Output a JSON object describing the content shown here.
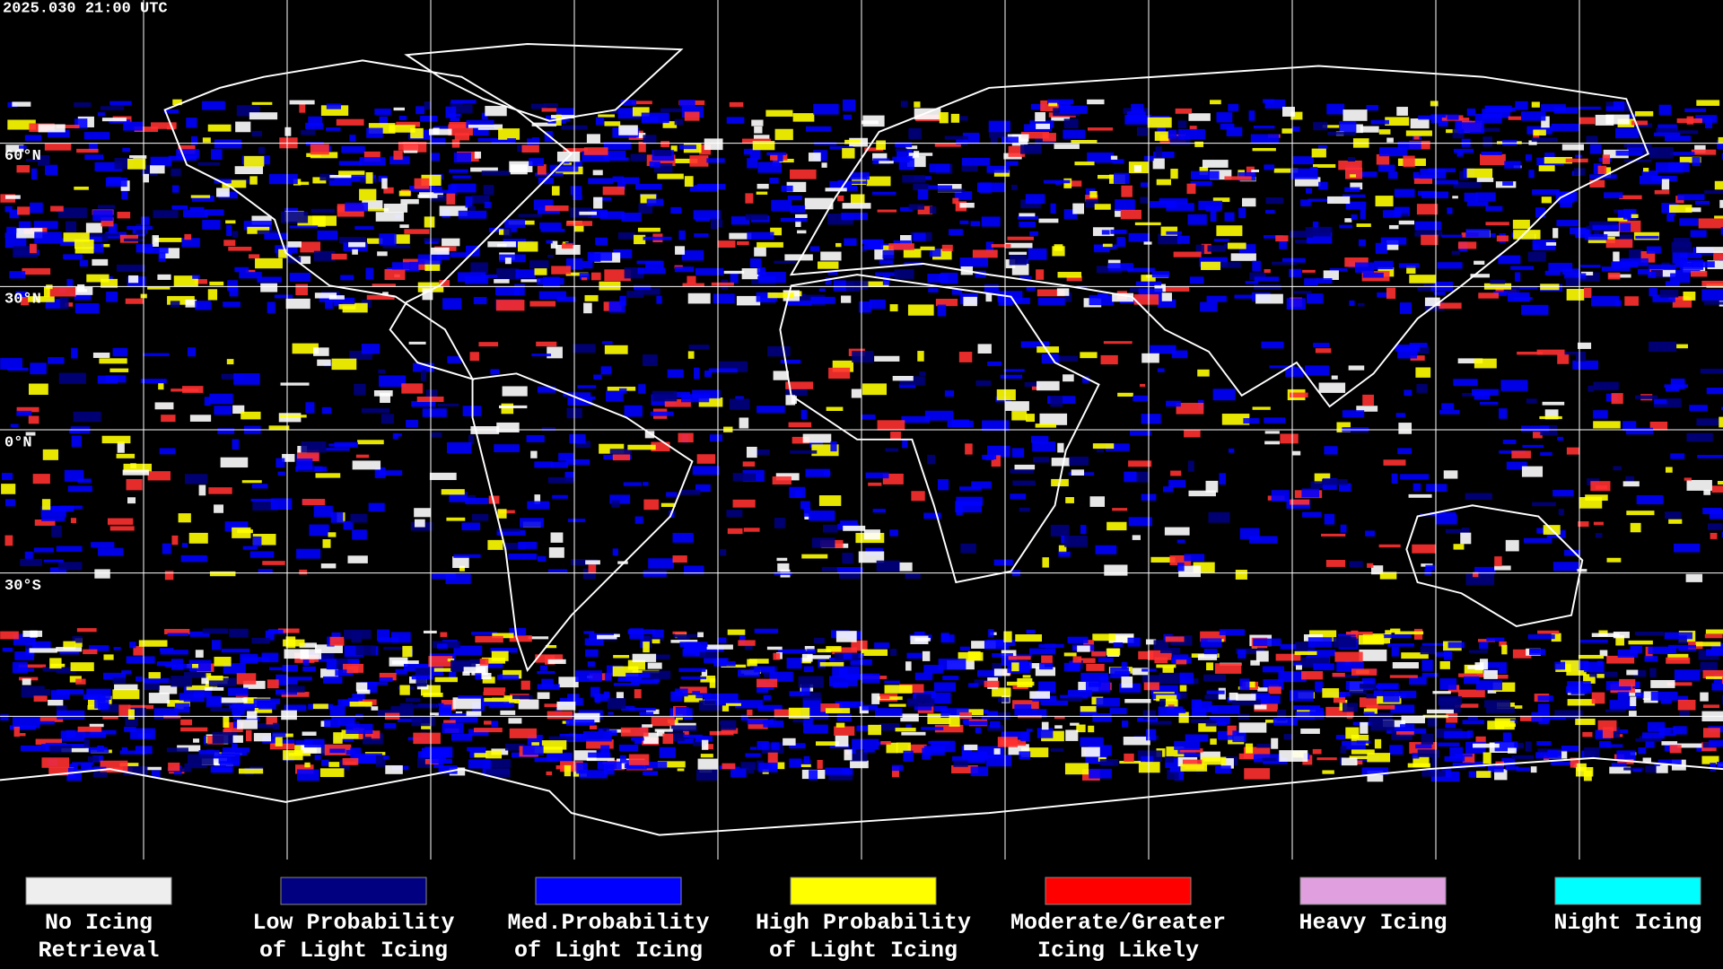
{
  "header": {
    "timestamp": "2025.030 21:00 UTC"
  },
  "latitude_labels": [
    "60°N",
    "30°N",
    "0°N",
    "30°S"
  ],
  "legend": [
    {
      "lines": [
        "No Icing",
        "Retrieval"
      ],
      "color": "#eeeeee"
    },
    {
      "lines": [
        "Low Probability",
        "of Light Icing"
      ],
      "color": "#000080"
    },
    {
      "lines": [
        "Med.Probability",
        "of Light Icing"
      ],
      "color": "#0000ff"
    },
    {
      "lines": [
        "High Probability",
        "of Light Icing"
      ],
      "color": "#ffff00"
    },
    {
      "lines": [
        "Moderate/Greater",
        "Icing Likely"
      ],
      "color": "#ff0000"
    },
    {
      "lines": [
        "Heavy Icing"
      ],
      "color": "#e0a0e0"
    },
    {
      "lines": [
        "Night Icing"
      ],
      "color": "#00ffff"
    }
  ]
}
